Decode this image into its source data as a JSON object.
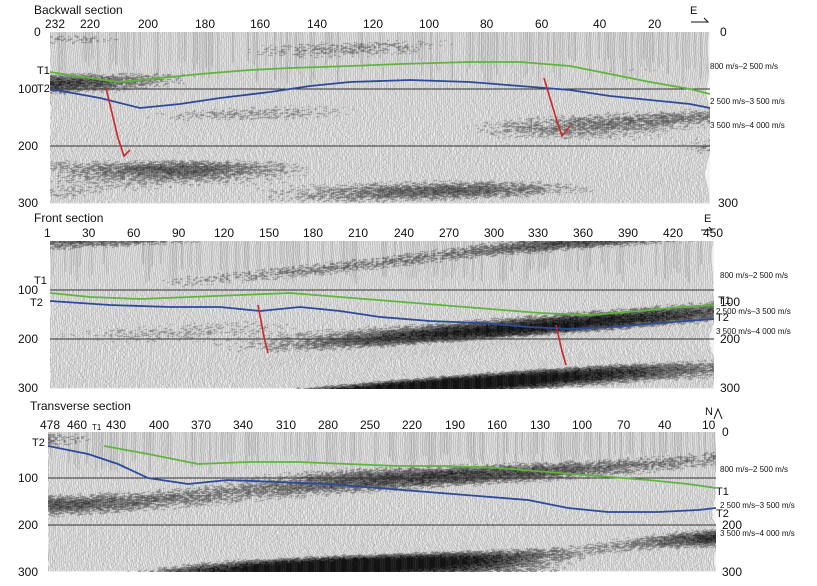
{
  "panels": [
    {
      "id": "backwall",
      "title": "Backwall section",
      "direction": "E",
      "stations": [
        "232",
        "220",
        "200",
        "180",
        "160",
        "140",
        "120",
        "100",
        "80",
        "60",
        "40",
        "20"
      ],
      "depth_left": [
        "0",
        "100",
        "200",
        "300"
      ],
      "depth_right": [
        "0",
        "300"
      ],
      "horizon_left": [
        "T1",
        "T2"
      ],
      "horizon_right": [],
      "velocities": [
        "800 m/s–2 500 m/s",
        "2 500 m/s–3 500 m/s",
        "3 500 m/s–4 000 m/s"
      ],
      "colors": {
        "t1": "#5fb53a",
        "t2": "#2b4a9a",
        "fault": "#d0262b"
      }
    },
    {
      "id": "front",
      "title": "Front section",
      "direction": "E",
      "stations": [
        "1",
        "30",
        "60",
        "90",
        "120",
        "150",
        "180",
        "210",
        "240",
        "270",
        "300",
        "330",
        "360",
        "390",
        "420",
        "450"
      ],
      "depth_left": [
        "100",
        "200",
        "300"
      ],
      "depth_right": [
        "100",
        "200",
        "300"
      ],
      "horizon_left": [
        "T1",
        "T2"
      ],
      "horizon_right": [
        "T1",
        "T2"
      ],
      "velocities": [
        "800 m/s–2 500 m/s",
        "2 500 m/s–3 500 m/s",
        "3 500 m/s–4 000 m/s"
      ],
      "colors": {
        "t1": "#5fb53a",
        "t2": "#2b4a9a",
        "fault": "#d0262b"
      }
    },
    {
      "id": "transverse",
      "title": "Transverse section",
      "direction": "N",
      "stations": [
        "478",
        "460",
        "T1",
        "430",
        "400",
        "370",
        "340",
        "310",
        "280",
        "250",
        "220",
        "190",
        "160",
        "130",
        "100",
        "70",
        "40",
        "10"
      ],
      "depth_left": [
        "100",
        "200",
        "300"
      ],
      "depth_right": [
        "0",
        "200",
        "300"
      ],
      "horizon_left": [
        "T2"
      ],
      "horizon_right": [
        "T1",
        "T2"
      ],
      "velocities": [
        "800 m/s–2 500 m/s",
        "2 500 m/s–3 500 m/s",
        "3 500 m/s–4 000 m/s"
      ],
      "colors": {
        "t1": "#5fb53a",
        "t2": "#2b4a9a",
        "fault": "#d0262b"
      }
    }
  ]
}
